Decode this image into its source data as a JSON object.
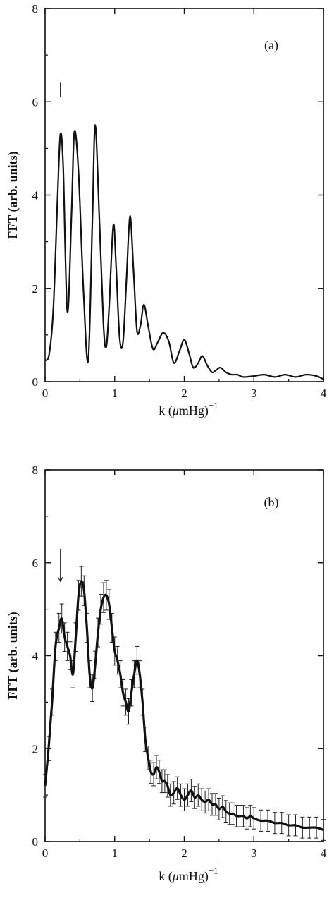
{
  "chart_data": [
    {
      "type": "line",
      "panel_label": "(a)",
      "xlabel_prefix": "k (",
      "xlabel_mu": "μ",
      "xlabel_unit": "mHg)",
      "xlabel_exp": "−1",
      "ylabel": "FFT (arb. units)",
      "xlim": [
        0,
        4
      ],
      "ylim": [
        0,
        8
      ],
      "xticks": [
        0,
        1,
        2,
        3,
        4
      ],
      "yticks": [
        0,
        2,
        4,
        6,
        8
      ],
      "error_bars": false,
      "marker_x": 0.22,
      "series": [
        {
          "x": [
            0,
            0.06,
            0.12,
            0.18,
            0.22,
            0.26,
            0.32,
            0.38,
            0.42,
            0.48,
            0.55,
            0.62,
            0.68,
            0.72,
            0.78,
            0.84,
            0.88,
            0.92,
            0.98,
            1.02,
            1.07,
            1.12,
            1.17,
            1.22,
            1.27,
            1.32,
            1.37,
            1.42,
            1.48,
            1.55,
            1.62,
            1.7,
            1.78,
            1.85,
            1.93,
            2.0,
            2.07,
            2.13,
            2.2,
            2.26,
            2.33,
            2.4,
            2.46,
            2.52,
            2.6,
            2.68,
            2.76,
            2.85,
            3.0,
            3.15,
            3.3,
            3.45,
            3.6,
            3.75,
            3.9,
            4.0
          ],
          "y": [
            0.45,
            0.6,
            1.6,
            4.0,
            5.3,
            4.6,
            1.5,
            3.6,
            5.35,
            4.5,
            2.0,
            0.45,
            3.5,
            5.5,
            3.5,
            1.2,
            0.75,
            1.6,
            3.35,
            2.5,
            0.95,
            0.85,
            2.2,
            3.55,
            2.4,
            1.1,
            1.2,
            1.65,
            1.2,
            0.7,
            0.85,
            1.05,
            0.85,
            0.4,
            0.65,
            0.9,
            0.6,
            0.3,
            0.4,
            0.55,
            0.35,
            0.2,
            0.25,
            0.3,
            0.2,
            0.15,
            0.15,
            0.1,
            0.12,
            0.15,
            0.1,
            0.15,
            0.1,
            0.15,
            0.12,
            0.05
          ]
        }
      ]
    },
    {
      "type": "line",
      "panel_label": "(b)",
      "xlabel_prefix": "k (",
      "xlabel_mu": "μ",
      "xlabel_unit": "mHg)",
      "xlabel_exp": "−1",
      "ylabel": "FFT (arb. units)",
      "xlim": [
        0,
        4
      ],
      "ylim": [
        0,
        8
      ],
      "xticks": [
        0,
        1,
        2,
        3,
        4
      ],
      "yticks": [
        0,
        2,
        4,
        6,
        8
      ],
      "error_bars": true,
      "marker_x": 0.22,
      "series": [
        {
          "x": [
            0,
            0.05,
            0.1,
            0.15,
            0.2,
            0.24,
            0.28,
            0.32,
            0.36,
            0.4,
            0.44,
            0.48,
            0.52,
            0.56,
            0.6,
            0.64,
            0.68,
            0.72,
            0.76,
            0.8,
            0.84,
            0.88,
            0.92,
            0.96,
            1.0,
            1.04,
            1.08,
            1.12,
            1.16,
            1.2,
            1.24,
            1.28,
            1.32,
            1.36,
            1.4,
            1.44,
            1.48,
            1.52,
            1.56,
            1.6,
            1.64,
            1.68,
            1.72,
            1.76,
            1.8,
            1.85,
            1.9,
            1.95,
            2.0,
            2.05,
            2.1,
            2.15,
            2.2,
            2.25,
            2.3,
            2.35,
            2.4,
            2.45,
            2.5,
            2.55,
            2.6,
            2.65,
            2.7,
            2.75,
            2.8,
            2.85,
            2.9,
            2.95,
            3.0,
            3.1,
            3.2,
            3.3,
            3.4,
            3.5,
            3.6,
            3.7,
            3.8,
            3.9,
            4.0
          ],
          "y": [
            1.2,
            2.0,
            3.0,
            4.2,
            4.6,
            4.8,
            4.4,
            4.2,
            4.0,
            3.6,
            4.4,
            5.3,
            5.6,
            5.4,
            4.6,
            3.6,
            3.3,
            3.8,
            4.5,
            5.0,
            5.25,
            5.3,
            5.1,
            4.6,
            4.1,
            3.9,
            3.6,
            3.2,
            3.0,
            2.8,
            3.2,
            3.6,
            3.9,
            3.6,
            3.0,
            2.2,
            1.8,
            1.5,
            1.45,
            1.6,
            1.5,
            1.3,
            1.3,
            1.2,
            1.0,
            1.05,
            1.15,
            1.0,
            0.9,
            1.0,
            1.1,
            0.95,
            1.0,
            0.9,
            0.85,
            0.9,
            0.8,
            0.8,
            0.7,
            0.75,
            0.65,
            0.6,
            0.6,
            0.55,
            0.55,
            0.55,
            0.5,
            0.55,
            0.5,
            0.45,
            0.45,
            0.4,
            0.4,
            0.35,
            0.35,
            0.3,
            0.3,
            0.3,
            0.25
          ]
        }
      ]
    }
  ]
}
